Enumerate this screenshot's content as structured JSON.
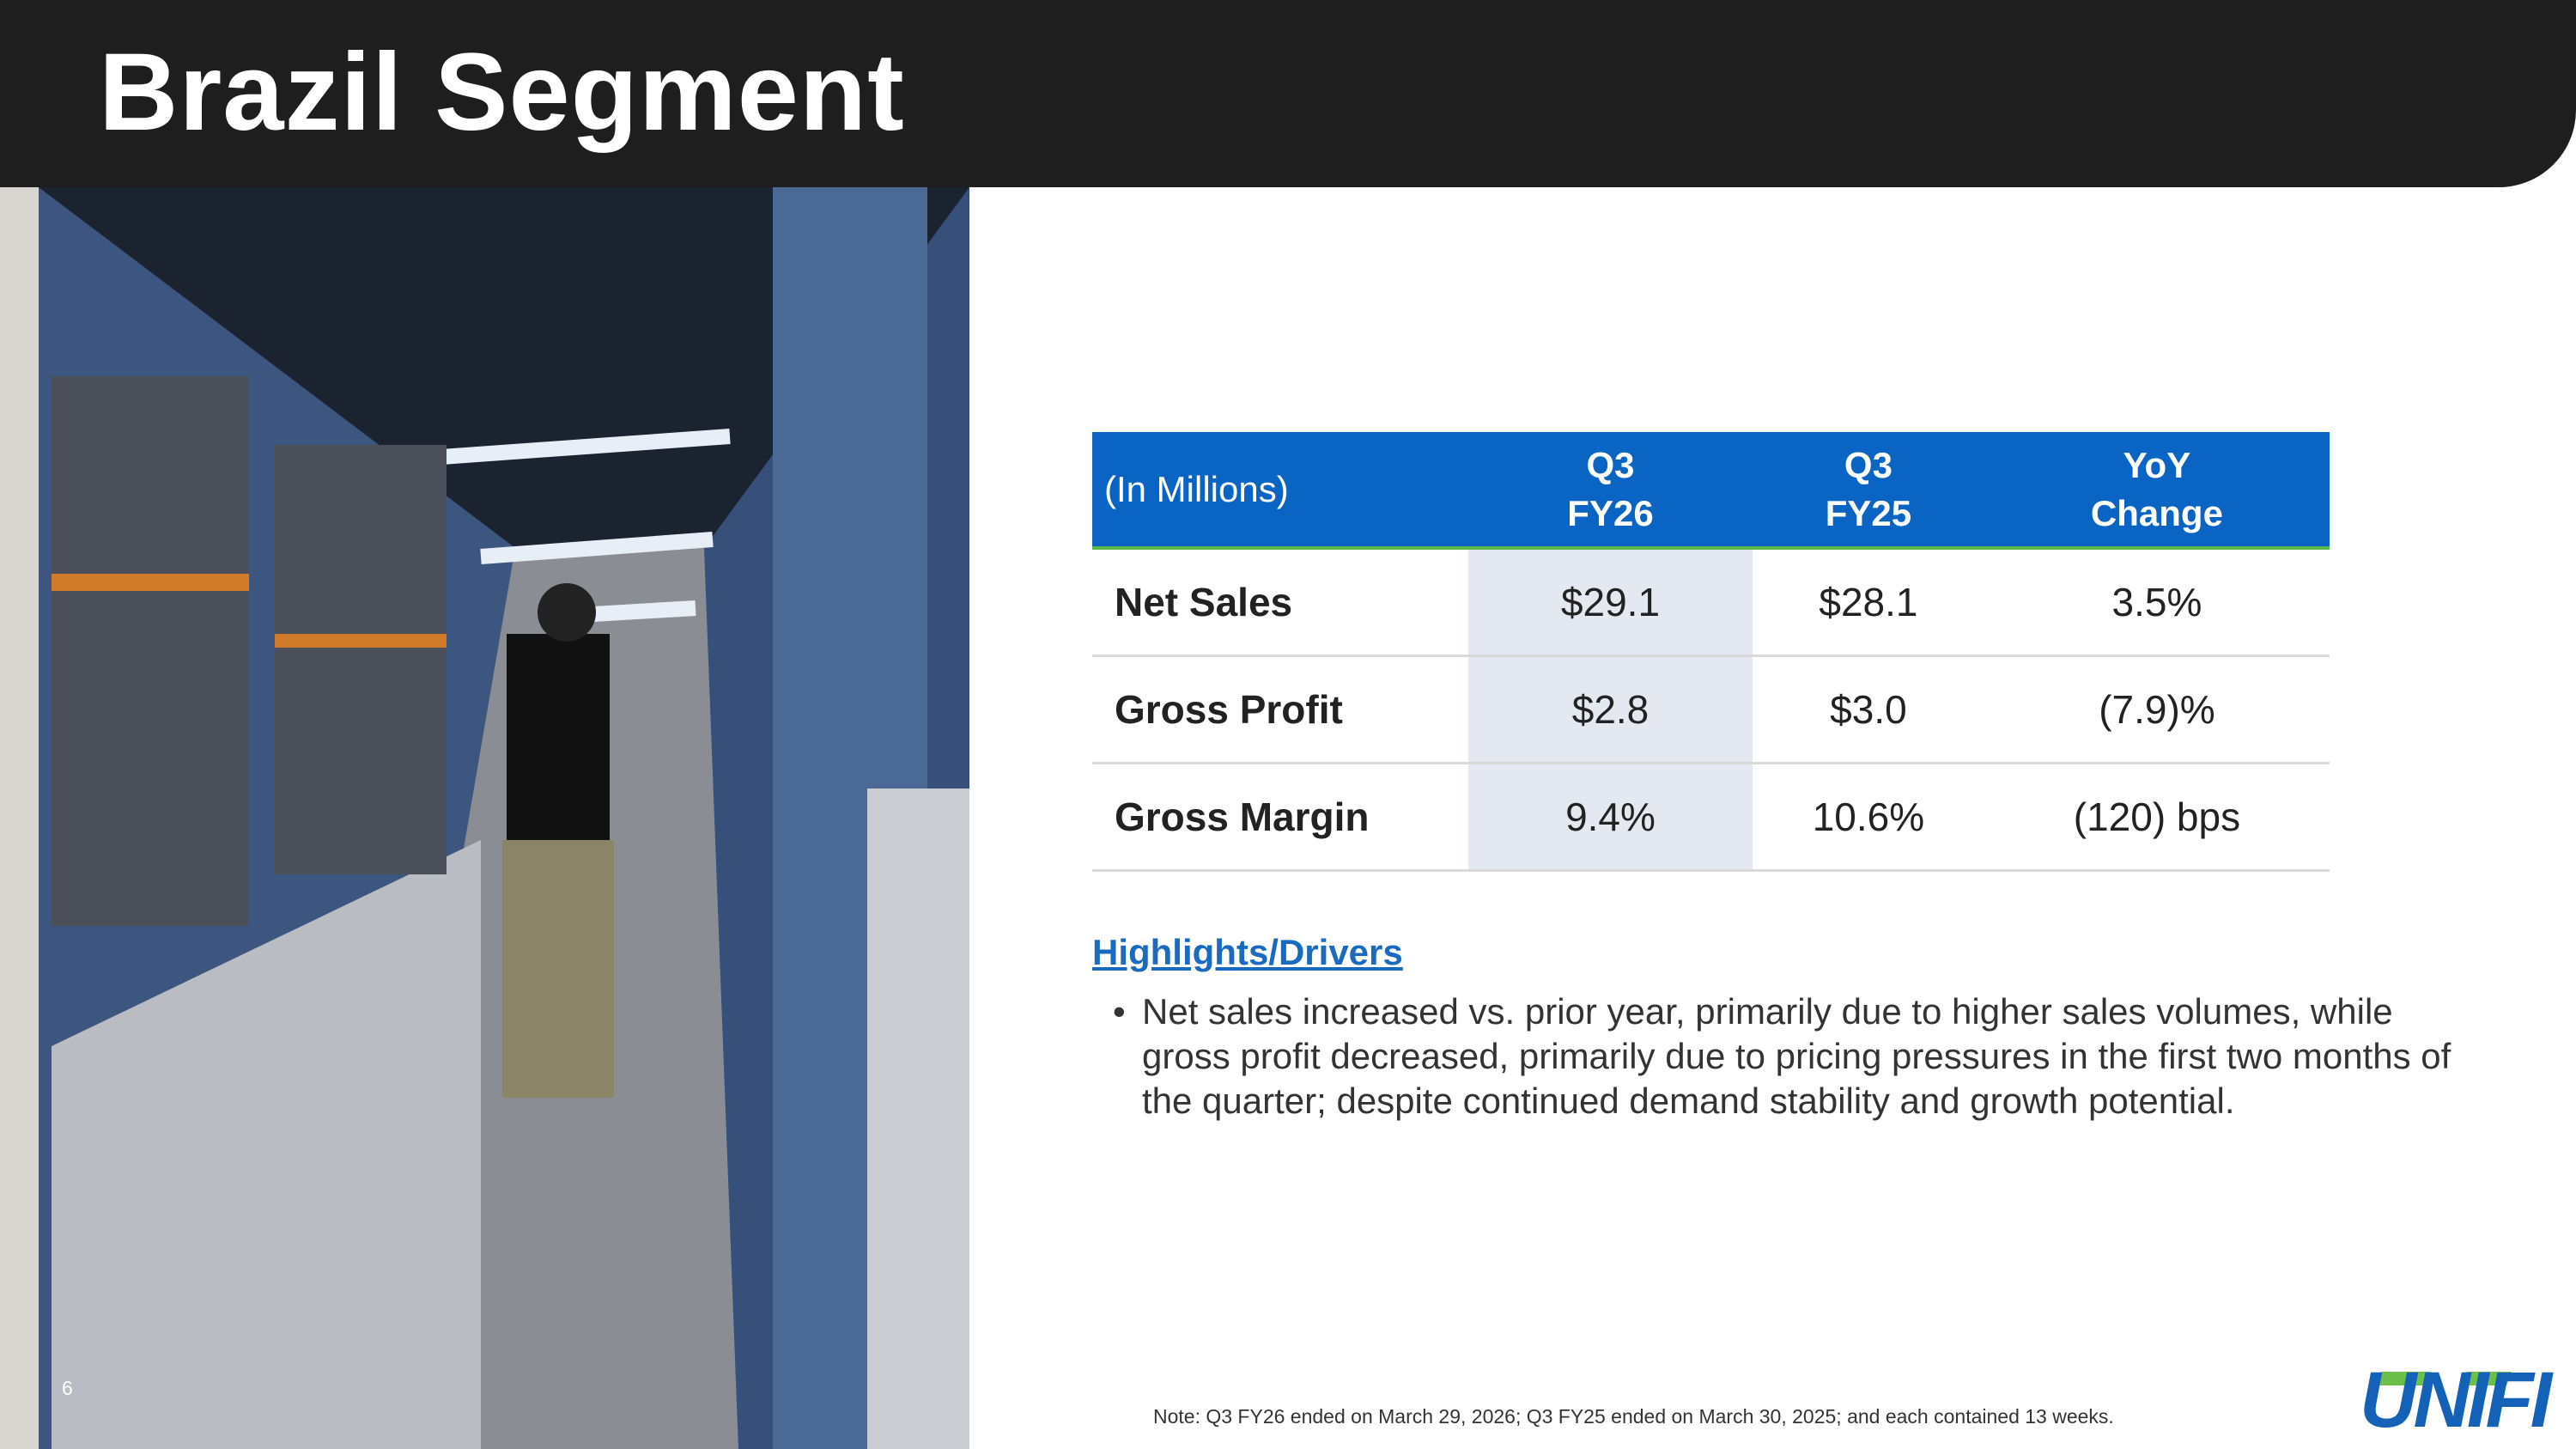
{
  "header": {
    "title": "Brazil Segment"
  },
  "table": {
    "header": [
      "(In Millions)",
      "Q3\nFY26",
      "Q3\nFY25",
      "YoY\nChange"
    ],
    "rows": [
      [
        "Net Sales",
        "$29.1",
        "$28.1",
        "3.5%"
      ],
      [
        "Gross Profit",
        "$2.8",
        "$3.0",
        "(7.9)%"
      ],
      [
        "Gross Margin",
        "9.4%",
        "10.6%",
        "(120) bps"
      ]
    ]
  },
  "highlights": {
    "heading": "Highlights/Drivers",
    "bullets": [
      "Net sales increased vs. prior year, primarily due to higher sales volumes, while gross profit decreased, primarily due to pricing pressures in the first two months of the quarter; despite continued demand stability and growth potential."
    ]
  },
  "footer": {
    "note": "Note: Q3 FY26 ended on March 29, 2026; Q3 FY25 ended on March 30, 2025; and each contained 13 weeks.",
    "page_number": "6",
    "logo": "UNIFI"
  }
}
